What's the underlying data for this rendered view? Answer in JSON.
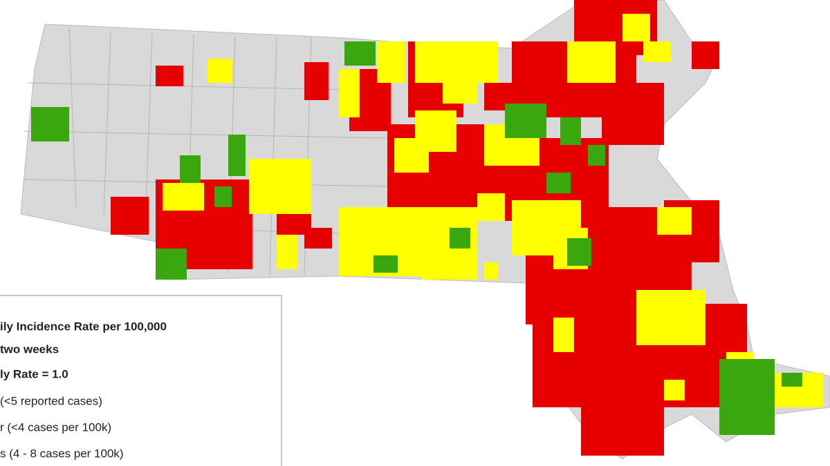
{
  "legend": {
    "title_lines": [
      "ily Incidence Rate per 100,000",
      "two weeks",
      "ly Rate = 1.0"
    ],
    "items": [
      "(<5 reported cases)",
      "r (<4 cases per 100k)",
      "s (4 - 8 cases per 100k)"
    ]
  }
}
